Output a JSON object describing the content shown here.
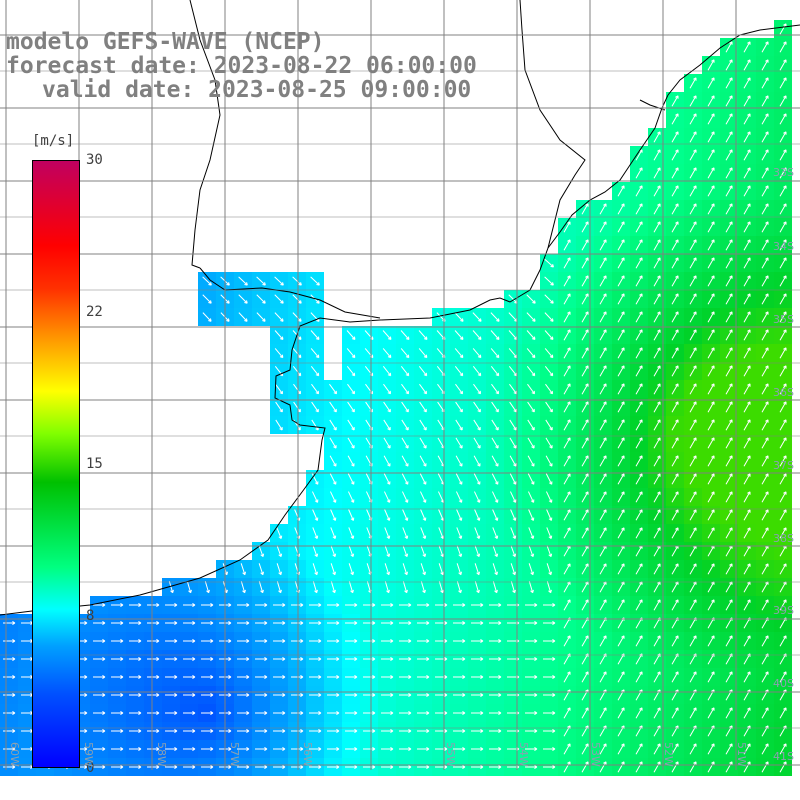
{
  "title": {
    "line1": "modelo GEFS-WAVE (NCEP)",
    "line2": "forecast date: 2023-08-22 06:00:00",
    "line3": "valid date: 2023-08-25 09:00:00"
  },
  "colorbar": {
    "unit": "[m/s]",
    "ticks": [
      {
        "label": "30",
        "value": 30
      },
      {
        "label": "22",
        "value": 22
      },
      {
        "label": "15",
        "value": 15
      },
      {
        "label": "8",
        "value": 8
      },
      {
        "label": "0",
        "value": 0
      }
    ],
    "colors": [
      "#0000ff",
      "#00a0ff",
      "#00ffff",
      "#00c000",
      "#ffff00",
      "#ff0000",
      "#c00060"
    ]
  },
  "lat_labels": [
    "33S",
    "34S",
    "35S",
    "36S",
    "37S",
    "38S",
    "39S",
    "40S",
    "41S"
  ],
  "lon_labels": [
    "60W",
    "59W",
    "58W",
    "57W",
    "56W",
    "55W",
    "54W",
    "53W",
    "52W",
    "51W"
  ],
  "colors": {
    "land": "#ffffff",
    "coast": "#000000",
    "grid": "#808080",
    "arrow": "#ffffff"
  }
}
